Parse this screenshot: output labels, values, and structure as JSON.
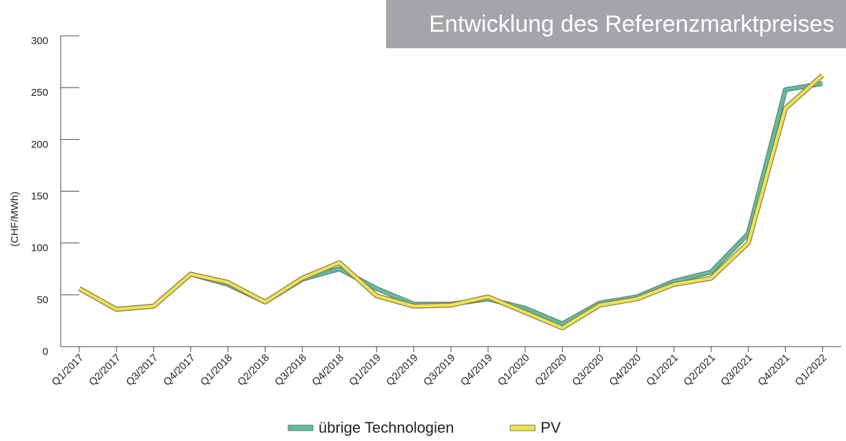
{
  "chart_data": {
    "type": "line",
    "title": "Entwicklung des Referenzmarktpreises",
    "y_label": "(CHF/MWh)",
    "categories": [
      "Q1/2017",
      "Q2/2017",
      "Q3/2017",
      "Q4/2017",
      "Q1/2018",
      "Q2/2018",
      "Q3/2018",
      "Q4/2018",
      "Q1/2019",
      "Q2/2019",
      "Q3/2019",
      "Q4/2019",
      "Q1/2020",
      "Q2/2020",
      "Q3/2020",
      "Q4/2020",
      "Q1/2021",
      "Q2/2021",
      "Q3/2021",
      "Q4/2021",
      "Q1/2022"
    ],
    "series": [
      {
        "name": "übrige Technologien",
        "color": "#5bbf9f",
        "values": [
          56,
          36,
          39,
          70,
          60,
          43,
          65,
          75,
          56,
          41,
          41,
          46,
          37,
          22,
          42,
          48,
          63,
          72,
          109,
          248,
          254
        ]
      },
      {
        "name": "PV",
        "color": "#f2e24a",
        "values": [
          56,
          36,
          39,
          70,
          62,
          43,
          66,
          81,
          49,
          39,
          40,
          48,
          33,
          18,
          40,
          46,
          60,
          66,
          100,
          230,
          262
        ]
      }
    ],
    "ylim": [
      0,
      300
    ],
    "yticks": [
      0,
      50,
      100,
      150,
      200,
      250,
      300
    ]
  }
}
